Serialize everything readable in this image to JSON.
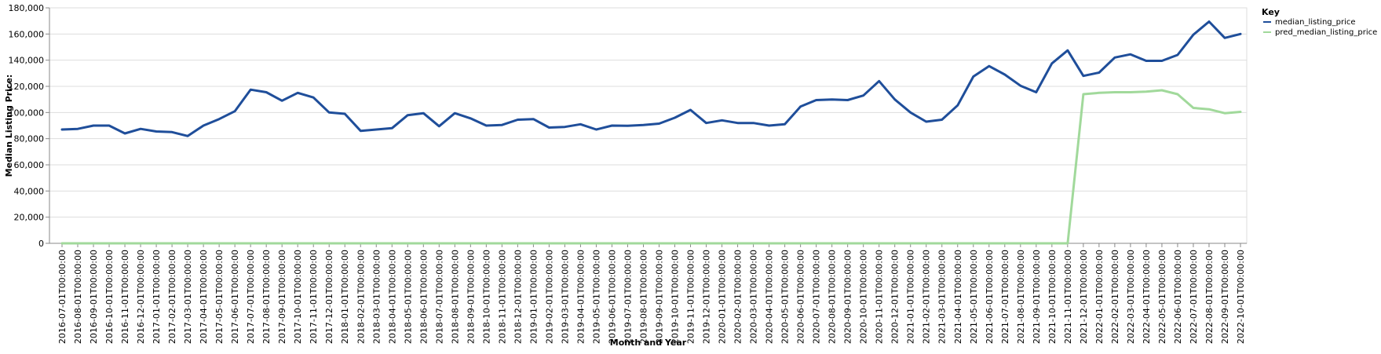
{
  "chart_data": {
    "type": "line",
    "xlabel": "Month and Year",
    "ylabel": "Median Listing Price:",
    "ylim": [
      0,
      180000
    ],
    "yticks": [
      "0",
      "20,000",
      "40,000",
      "60,000",
      "80,000",
      "100,000",
      "120,000",
      "140,000",
      "160,000",
      "180,000"
    ],
    "grid": true,
    "legend": {
      "title": "Key",
      "placement": "top-right"
    },
    "x": [
      "2016-07-01T00:00:00",
      "2016-08-01T00:00:00",
      "2016-09-01T00:00:00",
      "2016-10-01T00:00:00",
      "2016-11-01T00:00:00",
      "2016-12-01T00:00:00",
      "2017-01-01T00:00:00",
      "2017-02-01T00:00:00",
      "2017-03-01T00:00:00",
      "2017-04-01T00:00:00",
      "2017-05-01T00:00:00",
      "2017-06-01T00:00:00",
      "2017-07-01T00:00:00",
      "2017-08-01T00:00:00",
      "2017-09-01T00:00:00",
      "2017-10-01T00:00:00",
      "2017-11-01T00:00:00",
      "2017-12-01T00:00:00",
      "2018-01-01T00:00:00",
      "2018-02-01T00:00:00",
      "2018-03-01T00:00:00",
      "2018-04-01T00:00:00",
      "2018-05-01T00:00:00",
      "2018-06-01T00:00:00",
      "2018-07-01T00:00:00",
      "2018-08-01T00:00:00",
      "2018-09-01T00:00:00",
      "2018-10-01T00:00:00",
      "2018-11-01T00:00:00",
      "2018-12-01T00:00:00",
      "2019-01-01T00:00:00",
      "2019-02-01T00:00:00",
      "2019-03-01T00:00:00",
      "2019-04-01T00:00:00",
      "2019-05-01T00:00:00",
      "2019-06-01T00:00:00",
      "2019-07-01T00:00:00",
      "2019-08-01T00:00:00",
      "2019-09-01T00:00:00",
      "2019-10-01T00:00:00",
      "2019-11-01T00:00:00",
      "2019-12-01T00:00:00",
      "2020-01-01T00:00:00",
      "2020-02-01T00:00:00",
      "2020-03-01T00:00:00",
      "2020-04-01T00:00:00",
      "2020-05-01T00:00:00",
      "2020-06-01T00:00:00",
      "2020-07-01T00:00:00",
      "2020-08-01T00:00:00",
      "2020-09-01T00:00:00",
      "2020-10-01T00:00:00",
      "2020-11-01T00:00:00",
      "2020-12-01T00:00:00",
      "2021-01-01T00:00:00",
      "2021-02-01T00:00:00",
      "2021-03-01T00:00:00",
      "2021-04-01T00:00:00",
      "2021-05-01T00:00:00",
      "2021-06-01T00:00:00",
      "2021-07-01T00:00:00",
      "2021-08-01T00:00:00",
      "2021-09-01T00:00:00",
      "2021-10-01T00:00:00",
      "2021-11-01T00:00:00",
      "2021-12-01T00:00:00",
      "2022-01-01T00:00:00",
      "2022-02-01T00:00:00",
      "2022-03-01T00:00:00",
      "2022-04-01T00:00:00",
      "2022-05-01T00:00:00",
      "2022-06-01T00:00:00",
      "2022-07-01T00:00:00",
      "2022-08-01T00:00:00",
      "2022-09-01T00:00:00",
      "2022-10-01T00:00:00"
    ],
    "series": [
      {
        "name": "median_listing_price",
        "color": "#1f4e9a",
        "values": [
          87000,
          87500,
          90000,
          90000,
          84000,
          87500,
          85500,
          85000,
          82000,
          90000,
          95000,
          101000,
          117500,
          115500,
          109000,
          115000,
          111500,
          100000,
          99000,
          86000,
          87000,
          88000,
          98000,
          99500,
          89500,
          99500,
          95500,
          90000,
          90500,
          94500,
          95000,
          88500,
          89000,
          91000,
          87000,
          90000,
          89800,
          90500,
          91500,
          96000,
          102000,
          92000,
          94000,
          92000,
          92000,
          90000,
          91000,
          104500,
          109500,
          110000,
          109500,
          113000,
          124000,
          110000,
          100000,
          93000,
          94500,
          105500,
          127500,
          135500,
          129000,
          120500,
          115500,
          137500,
          147500,
          128000,
          130500,
          142000,
          144500,
          139500,
          139500,
          144000,
          159500,
          169500,
          157000,
          160000
        ]
      },
      {
        "name": "pred_median_listing_price",
        "color": "#a1d99b",
        "values": [
          0,
          0,
          0,
          0,
          0,
          0,
          0,
          0,
          0,
          0,
          0,
          0,
          0,
          0,
          0,
          0,
          0,
          0,
          0,
          0,
          0,
          0,
          0,
          0,
          0,
          0,
          0,
          0,
          0,
          0,
          0,
          0,
          0,
          0,
          0,
          0,
          0,
          0,
          0,
          0,
          0,
          0,
          0,
          0,
          0,
          0,
          0,
          0,
          0,
          0,
          0,
          0,
          0,
          0,
          0,
          0,
          0,
          0,
          0,
          0,
          0,
          0,
          0,
          0,
          0,
          114000,
          115000,
          115500,
          115500,
          116000,
          117000,
          114000,
          103500,
          102500,
          99500,
          100500
        ]
      }
    ]
  }
}
